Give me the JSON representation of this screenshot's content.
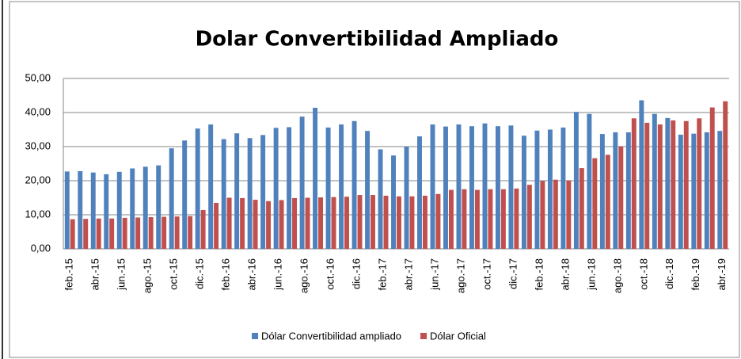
{
  "chart_data": {
    "type": "bar",
    "title": "Dolar Convertibilidad Ampliado",
    "categories": [
      "feb.-15",
      null,
      "abr.-15",
      null,
      "jun.-15",
      null,
      "ago.-15",
      null,
      "oct.-15",
      null,
      "dic.-15",
      null,
      "feb.-16",
      null,
      "abr.-16",
      null,
      "jun.-16",
      null,
      "ago.-16",
      null,
      "oct.-16",
      null,
      "dic.-16",
      null,
      "feb.-17",
      null,
      "abr.-17",
      null,
      "jun.-17",
      null,
      "ago.-17",
      null,
      "oct.-17",
      null,
      "dic.-17",
      null,
      "feb.-18",
      null,
      "abr.-18",
      null,
      "jun.-18",
      null,
      "ago.-18",
      null,
      "oct.-18",
      null,
      "dic.-18",
      null,
      "feb.-19",
      null,
      "abr.-19"
    ],
    "series": [
      {
        "name": "Dólar Convertibilidad ampliado",
        "color": "#4f81bd",
        "values": [
          22.7,
          22.8,
          22.4,
          21.9,
          22.6,
          23.6,
          24.1,
          24.5,
          29.5,
          31.8,
          35.3,
          36.5,
          32.2,
          33.9,
          32.5,
          33.4,
          35.5,
          35.7,
          38.8,
          41.4,
          35.6,
          36.5,
          37.5,
          34.6,
          29.2,
          27.4,
          30.0,
          33.0,
          36.5,
          35.9,
          36.5,
          36.0,
          36.8,
          36.0,
          36.2,
          33.2,
          34.7,
          35.0,
          35.6,
          40.2,
          39.6,
          33.7,
          34.2,
          34.2,
          43.6,
          39.6,
          38.4,
          33.5,
          33.8,
          34.2,
          34.6
        ]
      },
      {
        "name": "Dólar Oficial",
        "color": "#c0504d",
        "values": [
          8.7,
          8.8,
          8.9,
          8.9,
          9.1,
          9.2,
          9.3,
          9.4,
          9.5,
          9.6,
          11.4,
          13.5,
          15.0,
          14.9,
          14.4,
          14.0,
          14.3,
          14.9,
          15.0,
          15.1,
          15.2,
          15.3,
          15.8,
          15.8,
          15.6,
          15.4,
          15.4,
          15.6,
          16.1,
          17.3,
          17.5,
          17.3,
          17.5,
          17.5,
          17.7,
          18.8,
          19.9,
          20.3,
          20.1,
          23.7,
          26.6,
          27.6,
          30.1,
          38.3,
          37.0,
          36.5,
          37.7,
          37.5,
          38.3,
          41.5,
          43.3
        ]
      }
    ],
    "ylim": [
      0,
      50
    ],
    "yticks": [
      {
        "value": 0,
        "label": "0,00"
      },
      {
        "value": 10,
        "label": "10,00"
      },
      {
        "value": 20,
        "label": "20,00"
      },
      {
        "value": 30,
        "label": "30,00"
      },
      {
        "value": 40,
        "label": "40,00"
      },
      {
        "value": 50,
        "label": "50,00"
      }
    ],
    "grid": true,
    "legend": "bottom"
  }
}
